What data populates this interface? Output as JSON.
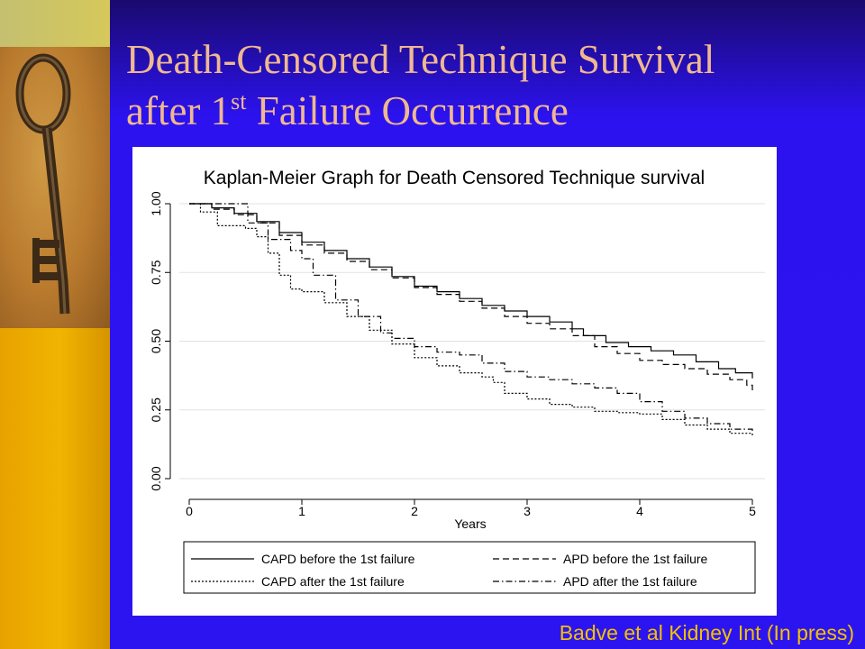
{
  "slide": {
    "title_part1": "Death-Censored Technique Survival",
    "title_part2_before_sup": "after 1",
    "title_sup": "st",
    "title_part2_after_sup": " Failure Occurrence",
    "citation": "Badve et al Kidney Int (In press)",
    "colors": {
      "background": "#2c14f0",
      "title": "#f0b890",
      "citation": "#f2c200",
      "sidebar": "#f1b400"
    },
    "decor_image": "antique-key-image"
  },
  "chart_data": {
    "type": "line",
    "step": true,
    "title": "Kaplan-Meier Graph for Death Censored Technique survival",
    "xlabel": "Years",
    "ylabel": "",
    "xlim": [
      0,
      5
    ],
    "ylim": [
      0,
      1
    ],
    "x_ticks": [
      "0",
      "1",
      "2",
      "3",
      "4",
      "5"
    ],
    "y_ticks": [
      "0.00",
      "0.25",
      "0.50",
      "0.75",
      "1.00"
    ],
    "grid": true,
    "legend_position": "bottom",
    "series": [
      {
        "name": "CAPD before the 1st failure",
        "dash": "solid",
        "points": [
          [
            0,
            1.0
          ],
          [
            0.2,
            0.985
          ],
          [
            0.4,
            0.965
          ],
          [
            0.6,
            0.935
          ],
          [
            0.8,
            0.895
          ],
          [
            1.0,
            0.86
          ],
          [
            1.2,
            0.83
          ],
          [
            1.4,
            0.8
          ],
          [
            1.6,
            0.77
          ],
          [
            1.8,
            0.735
          ],
          [
            2.0,
            0.7
          ],
          [
            2.2,
            0.68
          ],
          [
            2.4,
            0.655
          ],
          [
            2.6,
            0.63
          ],
          [
            2.8,
            0.61
          ],
          [
            3.0,
            0.59
          ],
          [
            3.2,
            0.57
          ],
          [
            3.4,
            0.545
          ],
          [
            3.5,
            0.52
          ],
          [
            3.7,
            0.495
          ],
          [
            3.9,
            0.48
          ],
          [
            4.1,
            0.465
          ],
          [
            4.3,
            0.45
          ],
          [
            4.5,
            0.425
          ],
          [
            4.7,
            0.4
          ],
          [
            4.85,
            0.385
          ],
          [
            5.0,
            0.365
          ]
        ]
      },
      {
        "name": "APD before the 1st failure",
        "dash": "dashed",
        "points": [
          [
            0,
            1.0
          ],
          [
            0.2,
            0.98
          ],
          [
            0.4,
            0.96
          ],
          [
            0.6,
            0.93
          ],
          [
            0.8,
            0.885
          ],
          [
            1.0,
            0.85
          ],
          [
            1.2,
            0.82
          ],
          [
            1.4,
            0.79
          ],
          [
            1.6,
            0.76
          ],
          [
            1.8,
            0.73
          ],
          [
            2.0,
            0.695
          ],
          [
            2.2,
            0.67
          ],
          [
            2.4,
            0.645
          ],
          [
            2.6,
            0.62
          ],
          [
            2.8,
            0.59
          ],
          [
            3.0,
            0.565
          ],
          [
            3.2,
            0.545
          ],
          [
            3.4,
            0.52
          ],
          [
            3.6,
            0.48
          ],
          [
            3.8,
            0.455
          ],
          [
            4.0,
            0.43
          ],
          [
            4.2,
            0.415
          ],
          [
            4.4,
            0.4
          ],
          [
            4.6,
            0.38
          ],
          [
            4.8,
            0.36
          ],
          [
            4.95,
            0.34
          ],
          [
            5.0,
            0.32
          ]
        ]
      },
      {
        "name": "CAPD after the 1st failure",
        "dash": "dotted",
        "points": [
          [
            0,
            1.0
          ],
          [
            0.1,
            0.97
          ],
          [
            0.25,
            0.92
          ],
          [
            0.5,
            0.91
          ],
          [
            0.6,
            0.88
          ],
          [
            0.7,
            0.82
          ],
          [
            0.8,
            0.74
          ],
          [
            0.9,
            0.69
          ],
          [
            1.0,
            0.68
          ],
          [
            1.2,
            0.64
          ],
          [
            1.4,
            0.59
          ],
          [
            1.6,
            0.54
          ],
          [
            1.8,
            0.49
          ],
          [
            2.0,
            0.44
          ],
          [
            2.2,
            0.41
          ],
          [
            2.4,
            0.385
          ],
          [
            2.6,
            0.37
          ],
          [
            2.7,
            0.35
          ],
          [
            2.8,
            0.31
          ],
          [
            3.0,
            0.29
          ],
          [
            3.2,
            0.27
          ],
          [
            3.4,
            0.26
          ],
          [
            3.6,
            0.245
          ],
          [
            3.8,
            0.24
          ],
          [
            4.0,
            0.235
          ],
          [
            4.2,
            0.215
          ],
          [
            4.4,
            0.195
          ],
          [
            4.6,
            0.18
          ],
          [
            4.8,
            0.165
          ],
          [
            5.0,
            0.155
          ]
        ]
      },
      {
        "name": "APD after the 1st failure",
        "dash": "dashdot",
        "points": [
          [
            0,
            1.0
          ],
          [
            0.3,
            1.0
          ],
          [
            0.5,
            1.0
          ],
          [
            0.52,
            0.93
          ],
          [
            0.7,
            0.87
          ],
          [
            0.9,
            0.83
          ],
          [
            1.0,
            0.8
          ],
          [
            1.1,
            0.74
          ],
          [
            1.3,
            0.65
          ],
          [
            1.5,
            0.59
          ],
          [
            1.7,
            0.53
          ],
          [
            1.8,
            0.51
          ],
          [
            2.0,
            0.48
          ],
          [
            2.2,
            0.46
          ],
          [
            2.4,
            0.45
          ],
          [
            2.6,
            0.42
          ],
          [
            2.8,
            0.39
          ],
          [
            3.0,
            0.37
          ],
          [
            3.2,
            0.36
          ],
          [
            3.4,
            0.345
          ],
          [
            3.6,
            0.33
          ],
          [
            3.8,
            0.31
          ],
          [
            4.0,
            0.28
          ],
          [
            4.2,
            0.245
          ],
          [
            4.4,
            0.22
          ],
          [
            4.6,
            0.2
          ],
          [
            4.8,
            0.18
          ],
          [
            5.0,
            0.17
          ]
        ]
      }
    ]
  }
}
